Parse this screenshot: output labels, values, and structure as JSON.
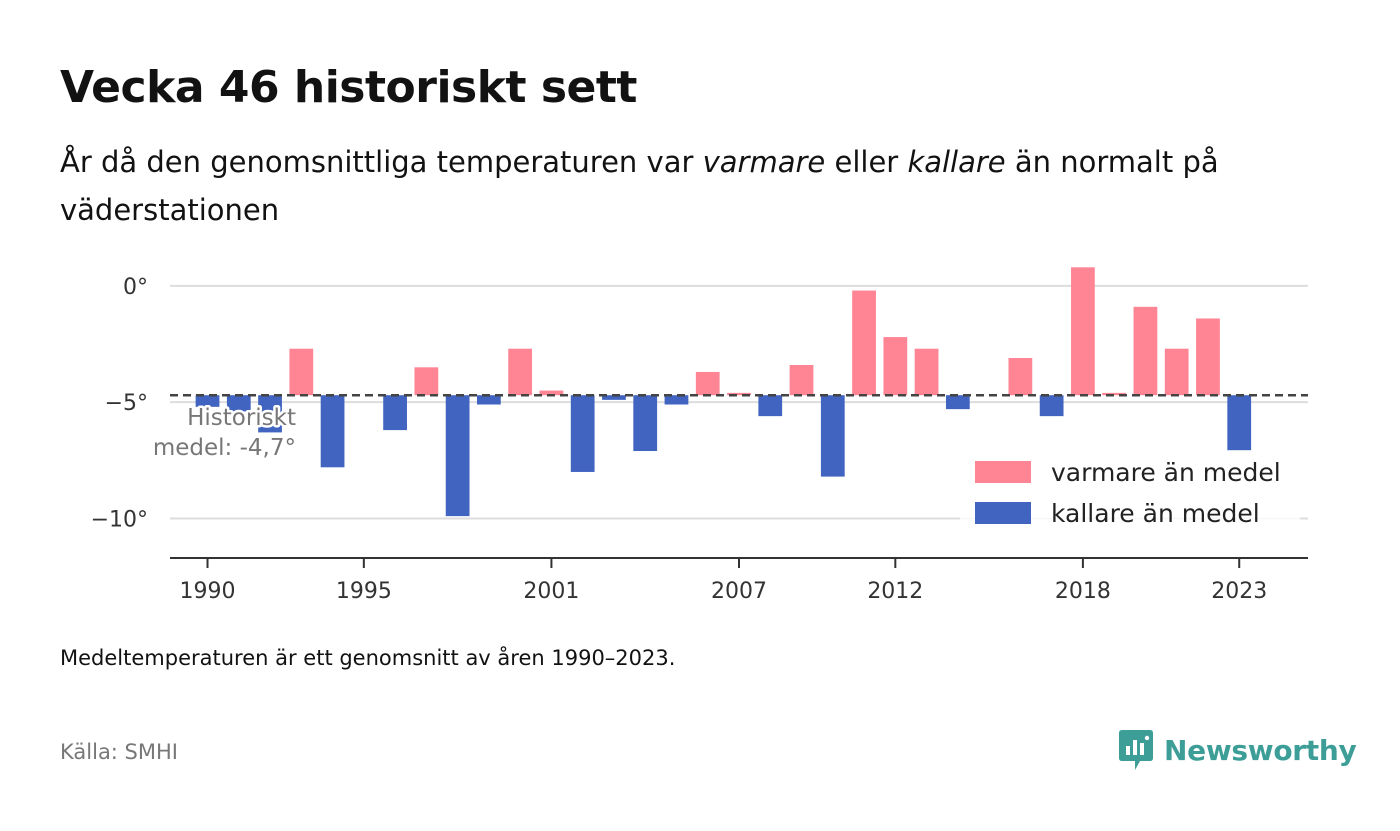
{
  "header": {
    "title": "Vecka 46 historiskt sett",
    "subtitle_part1": "År då den genomsnittliga temperaturen var ",
    "subtitle_warm": "varmare",
    "subtitle_part2": " eller ",
    "subtitle_cold": "kallare",
    "subtitle_part3": " än normalt på väderstationen"
  },
  "chart_data": {
    "type": "bar",
    "baseline": -4.7,
    "baseline_label": [
      "Historiskt",
      "medel: -4,7°"
    ],
    "ylim": [
      -11.7,
      1.2
    ],
    "y_ticks": [
      0,
      -5,
      -10
    ],
    "y_tick_labels": [
      "0°",
      "−5°",
      "−10°"
    ],
    "x_ticks": [
      1990,
      1995,
      2001,
      2007,
      2012,
      2018,
      2023
    ],
    "x_tick_labels": [
      "1990",
      "1995",
      "2001",
      "2007",
      "2012",
      "2018",
      "2023"
    ],
    "xlim": [
      1988.8,
      2025.2
    ],
    "categories": [
      1990,
      1991,
      1992,
      1993,
      1994,
      1996,
      1997,
      1998,
      1999,
      2000,
      2001,
      2002,
      2003,
      2004,
      2005,
      2006,
      2007,
      2008,
      2009,
      2010,
      2011,
      2012,
      2013,
      2014,
      2016,
      2017,
      2018,
      2019,
      2020,
      2021,
      2022,
      2023
    ],
    "values": [
      -5.2,
      -5.4,
      -6.3,
      -2.7,
      -7.8,
      -6.2,
      -3.5,
      -9.9,
      -5.1,
      -2.7,
      -4.5,
      -8.0,
      -4.9,
      -7.1,
      -5.1,
      -3.7,
      -4.6,
      -5.6,
      -3.4,
      -8.2,
      -0.2,
      -2.2,
      -2.7,
      -5.3,
      -3.1,
      -5.6,
      0.8,
      -4.6,
      -0.9,
      -2.7,
      -1.4,
      -7.1
    ],
    "legend": {
      "position": "bottom-right",
      "items": [
        {
          "label": "varmare än medel",
          "color": "#ff8595"
        },
        {
          "label": "kallare än medel",
          "color": "#4164c1"
        }
      ]
    }
  },
  "colors": {
    "warm": "#ff8595",
    "cold": "#4164c1",
    "grid": "#dddddd",
    "axis": "#333333",
    "brand": "#3d9e98"
  },
  "footer": {
    "note": "Medeltemperaturen är ett genomsnitt av åren 1990–2023.",
    "source": "Källa: SMHI",
    "brand": "Newsworthy"
  }
}
